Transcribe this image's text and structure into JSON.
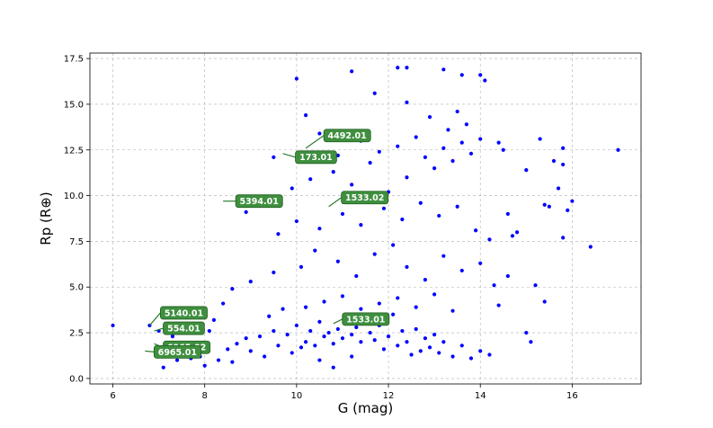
{
  "chart_data": {
    "type": "scatter",
    "title": "",
    "xlabel": "G (mag)",
    "ylabel": "Rp (R⊕)",
    "xlim": [
      5.5,
      17.5
    ],
    "ylim": [
      -0.3,
      17.8
    ],
    "x_ticks": [
      6,
      8,
      10,
      12,
      14,
      16
    ],
    "x_tick_labels": [
      "6",
      "8",
      "10",
      "12",
      "14",
      "16"
    ],
    "y_ticks": [
      0.0,
      2.5,
      5.0,
      7.5,
      10.0,
      12.5,
      15.0,
      17.5
    ],
    "y_tick_labels": [
      "0.0",
      "2.5",
      "5.0",
      "7.5",
      "10.0",
      "12.5",
      "15.0",
      "17.5"
    ],
    "grid": true,
    "point_color": "#0000ff",
    "label_color": "#3f8f3f",
    "series": [
      {
        "name": "",
        "points": [
          [
            6.0,
            2.9
          ],
          [
            6.8,
            2.9
          ],
          [
            7.0,
            2.6
          ],
          [
            7.3,
            2.3
          ],
          [
            7.6,
            1.9
          ],
          [
            7.9,
            1.2
          ],
          [
            7.1,
            0.6
          ],
          [
            7.4,
            1.0
          ],
          [
            7.7,
            1.1
          ],
          [
            8.0,
            0.7
          ],
          [
            8.3,
            1.0
          ],
          [
            8.6,
            0.9
          ],
          [
            8.1,
            2.6
          ],
          [
            8.2,
            3.2
          ],
          [
            8.4,
            4.1
          ],
          [
            8.6,
            4.9
          ],
          [
            8.5,
            1.6
          ],
          [
            8.7,
            1.9
          ],
          [
            8.9,
            2.2
          ],
          [
            9.0,
            1.5
          ],
          [
            9.2,
            2.3
          ],
          [
            9.3,
            1.2
          ],
          [
            9.5,
            2.6
          ],
          [
            9.6,
            1.8
          ],
          [
            9.8,
            2.4
          ],
          [
            9.9,
            1.4
          ],
          [
            10.0,
            2.9
          ],
          [
            10.1,
            1.7
          ],
          [
            10.2,
            2.0
          ],
          [
            10.3,
            2.6
          ],
          [
            10.4,
            1.8
          ],
          [
            10.5,
            3.1
          ],
          [
            10.6,
            2.3
          ],
          [
            10.7,
            2.5
          ],
          [
            10.8,
            1.9
          ],
          [
            10.9,
            2.7
          ],
          [
            11.0,
            2.2
          ],
          [
            11.1,
            3.0
          ],
          [
            11.2,
            2.4
          ],
          [
            11.3,
            2.8
          ],
          [
            11.4,
            2.0
          ],
          [
            11.5,
            3.3
          ],
          [
            11.6,
            2.5
          ],
          [
            11.7,
            2.1
          ],
          [
            11.8,
            2.9
          ],
          [
            11.9,
            1.6
          ],
          [
            12.0,
            2.3
          ],
          [
            12.1,
            3.5
          ],
          [
            12.2,
            1.8
          ],
          [
            12.3,
            2.6
          ],
          [
            12.4,
            2.0
          ],
          [
            12.5,
            1.3
          ],
          [
            12.6,
            2.7
          ],
          [
            12.7,
            1.5
          ],
          [
            12.8,
            2.2
          ],
          [
            12.9,
            1.7
          ],
          [
            13.0,
            2.4
          ],
          [
            13.1,
            1.4
          ],
          [
            13.2,
            2.0
          ],
          [
            13.4,
            1.2
          ],
          [
            13.6,
            1.8
          ],
          [
            13.8,
            1.1
          ],
          [
            14.0,
            1.5
          ],
          [
            14.2,
            1.3
          ],
          [
            10.5,
            1.0
          ],
          [
            10.8,
            0.6
          ],
          [
            11.2,
            1.2
          ],
          [
            9.4,
            3.4
          ],
          [
            9.7,
            3.8
          ],
          [
            10.2,
            3.9
          ],
          [
            10.6,
            4.2
          ],
          [
            11.0,
            4.5
          ],
          [
            11.4,
            3.8
          ],
          [
            11.8,
            4.1
          ],
          [
            12.2,
            4.4
          ],
          [
            12.6,
            3.9
          ],
          [
            13.0,
            4.6
          ],
          [
            13.4,
            3.7
          ],
          [
            9.0,
            5.3
          ],
          [
            9.5,
            5.8
          ],
          [
            10.1,
            6.1
          ],
          [
            10.4,
            7.0
          ],
          [
            10.9,
            6.4
          ],
          [
            11.3,
            5.6
          ],
          [
            11.7,
            6.8
          ],
          [
            12.1,
            7.3
          ],
          [
            12.4,
            6.1
          ],
          [
            12.8,
            5.4
          ],
          [
            13.2,
            6.7
          ],
          [
            13.6,
            5.9
          ],
          [
            14.0,
            6.3
          ],
          [
            14.3,
            5.1
          ],
          [
            9.6,
            7.9
          ],
          [
            10.0,
            8.6
          ],
          [
            10.5,
            8.2
          ],
          [
            11.0,
            9.0
          ],
          [
            11.4,
            8.4
          ],
          [
            11.9,
            9.3
          ],
          [
            12.3,
            8.7
          ],
          [
            12.7,
            9.6
          ],
          [
            13.1,
            8.9
          ],
          [
            13.5,
            9.4
          ],
          [
            13.9,
            8.1
          ],
          [
            14.2,
            7.6
          ],
          [
            9.9,
            10.4
          ],
          [
            10.3,
            10.9
          ],
          [
            10.8,
            11.3
          ],
          [
            11.2,
            10.6
          ],
          [
            11.6,
            11.8
          ],
          [
            12.0,
            10.2
          ],
          [
            12.4,
            11.0
          ],
          [
            12.8,
            12.1
          ],
          [
            13.0,
            11.5
          ],
          [
            13.2,
            12.6
          ],
          [
            13.4,
            11.9
          ],
          [
            13.6,
            12.9
          ],
          [
            13.8,
            12.3
          ],
          [
            14.0,
            13.1
          ],
          [
            13.3,
            13.6
          ],
          [
            13.7,
            13.9
          ],
          [
            12.6,
            13.2
          ],
          [
            12.2,
            12.7
          ],
          [
            11.8,
            12.4
          ],
          [
            11.4,
            13.0
          ],
          [
            10.9,
            12.2
          ],
          [
            10.5,
            13.4
          ],
          [
            12.9,
            14.3
          ],
          [
            13.5,
            14.6
          ],
          [
            12.4,
            15.1
          ],
          [
            11.7,
            15.6
          ],
          [
            11.2,
            16.8
          ],
          [
            12.2,
            17.0
          ],
          [
            12.4,
            17.0
          ],
          [
            13.2,
            16.9
          ],
          [
            13.6,
            16.6
          ],
          [
            14.0,
            16.6
          ],
          [
            14.1,
            16.3
          ],
          [
            10.0,
            16.4
          ],
          [
            9.5,
            12.1
          ],
          [
            8.9,
            9.1
          ],
          [
            10.2,
            14.4
          ],
          [
            14.4,
            12.9
          ],
          [
            14.5,
            12.5
          ],
          [
            14.6,
            9.0
          ],
          [
            14.7,
            7.8
          ],
          [
            14.8,
            8.0
          ],
          [
            15.0,
            11.4
          ],
          [
            15.2,
            5.1
          ],
          [
            15.3,
            13.1
          ],
          [
            15.4,
            9.5
          ],
          [
            15.5,
            9.4
          ],
          [
            15.6,
            11.9
          ],
          [
            15.7,
            10.4
          ],
          [
            15.8,
            12.6
          ],
          [
            15.8,
            11.7
          ],
          [
            15.9,
            9.2
          ],
          [
            16.0,
            9.7
          ],
          [
            16.4,
            7.2
          ],
          [
            15.4,
            4.2
          ],
          [
            15.1,
            2.0
          ],
          [
            15.0,
            2.5
          ],
          [
            17.0,
            12.5
          ],
          [
            15.8,
            7.7
          ],
          [
            14.6,
            5.6
          ],
          [
            14.4,
            4.0
          ]
        ]
      }
    ],
    "annotations": [
      {
        "label": "4492.01",
        "x": 10.2,
        "y": 12.6
      },
      {
        "label": "173.01",
        "x": 9.7,
        "y": 12.3
      },
      {
        "label": "5394.01",
        "x": 8.4,
        "y": 9.7
      },
      {
        "label": "1533.02",
        "x": 10.7,
        "y": 9.4
      },
      {
        "label": "5140.01",
        "x": 6.8,
        "y": 2.9
      },
      {
        "label": "554.01",
        "x": 6.9,
        "y": 2.6
      },
      {
        "label": "6965.02",
        "x": 6.9,
        "y": 1.9
      },
      {
        "label": "6965.01",
        "x": 6.7,
        "y": 1.5
      },
      {
        "label": "1533.01",
        "x": 10.8,
        "y": 3.0
      }
    ]
  }
}
